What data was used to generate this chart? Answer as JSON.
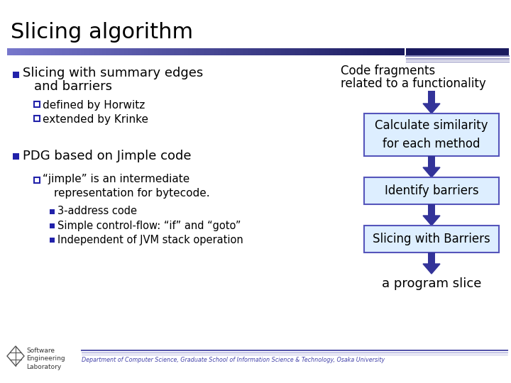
{
  "title": "Slicing algorithm",
  "title_fontsize": 22,
  "title_color": "#000000",
  "bg_color": "#ffffff",
  "header_bar_left_color": "#6666bb",
  "header_bar_right_color": "#1a1a5e",
  "bullet_color": "#2222aa",
  "bullet1_text_line1": "Slicing with summary edges",
  "bullet1_text_line2": "and barriers",
  "sub1a_text": "defined by Horwitz",
  "sub1b_text": "extended by Krinke",
  "bullet2_text": "PDG based on Jimple code",
  "sub2a_line1": "“jimple” is an intermediate",
  "sub2a_line2": "representation for bytecode.",
  "sub2b_text": "3-address code",
  "sub2c_text": "Simple control-flow: “if” and “goto”",
  "sub2d_text": "Independent of JVM stack operation",
  "right_text0_line1": "Code fragments",
  "right_text0_line2": "related to a functionality",
  "right_box1_text": "Calculate similarity\nfor each method",
  "right_box2_text": "Identify barriers",
  "right_box3_text": "Slicing with Barriers",
  "right_text4": "a program slice",
  "box_bg_color": "#ddeeff",
  "box_border_color": "#5555bb",
  "arrow_color": "#333399",
  "font_main": "DejaVu Sans",
  "footer_text": "Department of Computer Science, Graduate School of Information Science & Technology, Osaka University",
  "logo_text": "Software\nEngineering\nLaboratory"
}
